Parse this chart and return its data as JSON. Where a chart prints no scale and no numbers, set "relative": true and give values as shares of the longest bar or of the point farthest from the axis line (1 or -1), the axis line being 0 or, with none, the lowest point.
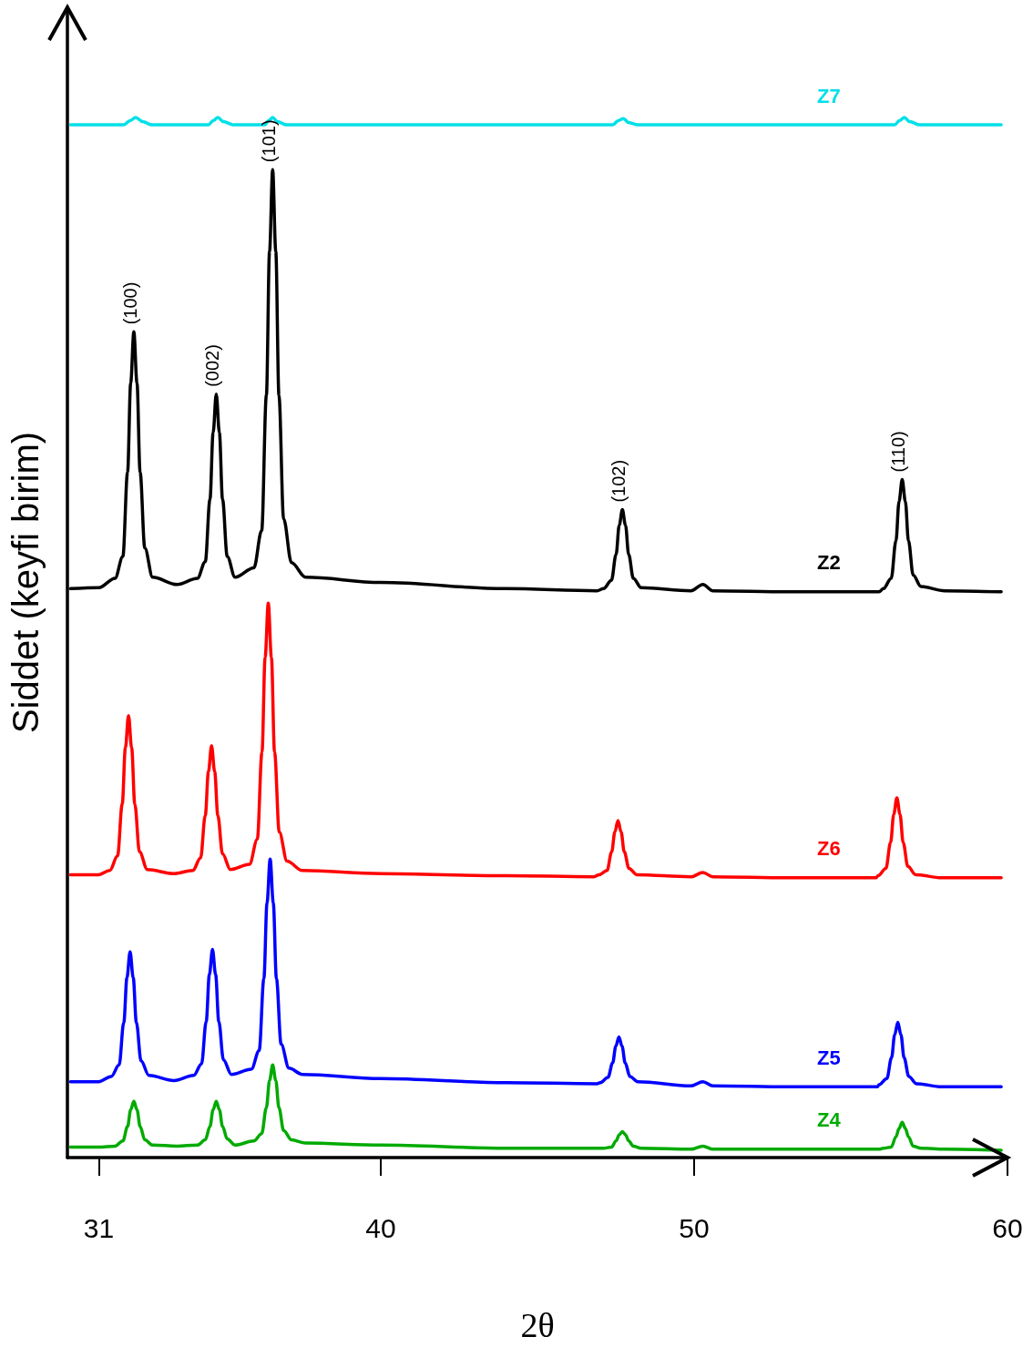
{
  "chart_data": {
    "type": "line",
    "relative": true,
    "xlabel": "2θ",
    "ylabel": "Siddet (keyfi birim)",
    "xlim": [
      30,
      60
    ],
    "xticks": [
      31,
      40,
      50,
      60
    ],
    "annotations": [
      {
        "text": "(100)",
        "x": 32.12,
        "y": 0.794
      },
      {
        "text": "(002)",
        "x": 34.75,
        "y": 0.734
      },
      {
        "text": "(101)",
        "x": 36.55,
        "y": 0.95
      },
      {
        "text": "(102)",
        "x": 47.71,
        "y": 0.623
      },
      {
        "text": "(110)",
        "x": 56.64,
        "y": 0.652
      }
    ],
    "series": [
      {
        "name": "Z7",
        "color": "#00e0e8",
        "x": [
          30.1,
          31.8,
          32.0,
          32.18,
          32.4,
          32.7,
          34.5,
          34.65,
          34.8,
          34.98,
          35.3,
          36.3,
          36.42,
          36.55,
          36.7,
          37.0,
          47.4,
          47.58,
          47.74,
          47.92,
          48.2,
          56.4,
          56.55,
          56.71,
          56.88,
          57.2,
          59.8
        ],
        "values": [
          0.993,
          0.993,
          0.997,
          1.0,
          0.996,
          0.993,
          0.993,
          0.997,
          1.0,
          0.996,
          0.993,
          0.993,
          0.997,
          1.0,
          0.996,
          0.993,
          0.993,
          0.997,
          0.999,
          0.995,
          0.993,
          0.993,
          0.997,
          1.0,
          0.996,
          0.993,
          0.993
        ]
      },
      {
        "name": "Z2",
        "color": "#000000",
        "x": [
          30.1,
          31.0,
          31.52,
          31.77,
          31.92,
          32.02,
          32.12,
          32.22,
          32.32,
          32.47,
          32.72,
          33.5,
          34.15,
          34.4,
          34.55,
          34.65,
          34.75,
          34.85,
          34.95,
          35.1,
          35.35,
          35.95,
          36.2,
          36.35,
          36.45,
          36.55,
          36.65,
          36.75,
          36.9,
          37.15,
          37.6,
          40,
          44,
          46.9,
          47.11,
          47.36,
          47.51,
          47.61,
          47.71,
          47.81,
          47.91,
          48.06,
          48.31,
          49.9,
          50.28,
          50.6,
          53,
          55.9,
          56.04,
          56.29,
          56.44,
          56.54,
          56.64,
          56.74,
          56.84,
          56.99,
          57.24,
          58,
          59.8
        ],
        "values": [
          0.547,
          0.548,
          0.557,
          0.578,
          0.659,
          0.745,
          0.794,
          0.745,
          0.659,
          0.586,
          0.558,
          0.551,
          0.557,
          0.573,
          0.633,
          0.697,
          0.734,
          0.697,
          0.633,
          0.578,
          0.558,
          0.567,
          0.603,
          0.733,
          0.871,
          0.95,
          0.871,
          0.733,
          0.614,
          0.572,
          0.558,
          0.553,
          0.547,
          0.545,
          0.547,
          0.555,
          0.58,
          0.608,
          0.623,
          0.608,
          0.58,
          0.557,
          0.548,
          0.545,
          0.551,
          0.545,
          0.544,
          0.544,
          0.547,
          0.557,
          0.593,
          0.631,
          0.652,
          0.631,
          0.593,
          0.56,
          0.549,
          0.545,
          0.544
        ]
      },
      {
        "name": "Z6",
        "color": "#ff0000",
        "x": [
          30.1,
          31.0,
          31.35,
          31.6,
          31.75,
          31.85,
          31.95,
          32.05,
          32.15,
          32.3,
          32.55,
          33.4,
          34.0,
          34.25,
          34.4,
          34.5,
          34.6,
          34.7,
          34.8,
          34.95,
          35.2,
          35.81,
          36.06,
          36.21,
          36.31,
          36.41,
          36.51,
          36.61,
          36.76,
          37.01,
          37.5,
          40,
          44,
          46.8,
          46.97,
          47.22,
          47.37,
          47.47,
          47.57,
          47.67,
          47.77,
          47.92,
          48.17,
          49.9,
          50.28,
          50.6,
          53,
          55.8,
          55.87,
          56.12,
          56.27,
          56.37,
          56.47,
          56.57,
          56.67,
          56.82,
          57.07,
          57.9,
          59.8
        ],
        "values": [
          0.272,
          0.272,
          0.276,
          0.29,
          0.34,
          0.394,
          0.425,
          0.394,
          0.34,
          0.294,
          0.277,
          0.273,
          0.276,
          0.288,
          0.329,
          0.371,
          0.396,
          0.371,
          0.329,
          0.292,
          0.277,
          0.282,
          0.306,
          0.39,
          0.481,
          0.533,
          0.481,
          0.39,
          0.313,
          0.285,
          0.276,
          0.273,
          0.271,
          0.27,
          0.272,
          0.276,
          0.294,
          0.313,
          0.324,
          0.313,
          0.294,
          0.278,
          0.272,
          0.27,
          0.274,
          0.27,
          0.269,
          0.269,
          0.271,
          0.278,
          0.303,
          0.33,
          0.346,
          0.33,
          0.303,
          0.28,
          0.272,
          0.269,
          0.269
        ]
      },
      {
        "name": "Z5",
        "color": "#0000ff",
        "x": [
          30.1,
          31.0,
          31.4,
          31.65,
          31.8,
          31.9,
          32.0,
          32.1,
          32.2,
          32.35,
          32.6,
          33.4,
          34.03,
          34.28,
          34.43,
          34.53,
          34.63,
          34.73,
          34.83,
          34.98,
          35.23,
          35.87,
          36.12,
          36.27,
          36.37,
          36.47,
          36.57,
          36.67,
          36.82,
          37.07,
          37.5,
          40,
          44,
          46.9,
          47.0,
          47.25,
          47.4,
          47.5,
          47.6,
          47.7,
          47.8,
          47.95,
          48.2,
          49.9,
          50.28,
          50.6,
          53,
          55.85,
          55.9,
          56.15,
          56.3,
          56.4,
          56.5,
          56.6,
          56.7,
          56.85,
          57.1,
          57.9,
          59.8
        ],
        "values": [
          0.073,
          0.073,
          0.078,
          0.089,
          0.13,
          0.173,
          0.198,
          0.173,
          0.13,
          0.093,
          0.079,
          0.074,
          0.079,
          0.09,
          0.131,
          0.176,
          0.2,
          0.176,
          0.131,
          0.094,
          0.08,
          0.085,
          0.103,
          0.172,
          0.245,
          0.287,
          0.245,
          0.172,
          0.109,
          0.086,
          0.08,
          0.076,
          0.072,
          0.071,
          0.072,
          0.077,
          0.091,
          0.107,
          0.116,
          0.107,
          0.091,
          0.078,
          0.073,
          0.069,
          0.073,
          0.069,
          0.068,
          0.068,
          0.07,
          0.076,
          0.096,
          0.118,
          0.13,
          0.118,
          0.096,
          0.078,
          0.071,
          0.068,
          0.068
        ]
      },
      {
        "name": "Z4",
        "color": "#00aa00",
        "x": [
          30.1,
          31.0,
          31.52,
          31.77,
          31.92,
          32.02,
          32.12,
          32.22,
          32.32,
          32.47,
          32.72,
          33.5,
          34.15,
          34.4,
          34.55,
          34.65,
          34.75,
          34.85,
          34.95,
          35.1,
          35.35,
          35.95,
          36.2,
          36.35,
          36.45,
          36.55,
          36.65,
          36.75,
          36.9,
          37.15,
          37.6,
          40,
          44,
          46.9,
          47.11,
          47.36,
          47.51,
          47.61,
          47.71,
          47.81,
          47.91,
          48.06,
          48.31,
          49.9,
          50.28,
          50.6,
          53,
          55.9,
          56.04,
          56.29,
          56.44,
          56.54,
          56.64,
          56.74,
          56.84,
          56.99,
          57.24,
          58,
          59.8
        ],
        "values": [
          0.01,
          0.01,
          0.011,
          0.016,
          0.03,
          0.046,
          0.054,
          0.046,
          0.03,
          0.017,
          0.012,
          0.011,
          0.012,
          0.017,
          0.03,
          0.046,
          0.054,
          0.046,
          0.03,
          0.018,
          0.012,
          0.016,
          0.023,
          0.048,
          0.074,
          0.089,
          0.074,
          0.048,
          0.026,
          0.017,
          0.014,
          0.012,
          0.009,
          0.009,
          0.009,
          0.01,
          0.016,
          0.022,
          0.025,
          0.022,
          0.016,
          0.011,
          0.009,
          0.008,
          0.011,
          0.008,
          0.008,
          0.008,
          0.009,
          0.01,
          0.02,
          0.028,
          0.034,
          0.028,
          0.02,
          0.011,
          0.009,
          0.008,
          0.007
        ]
      }
    ]
  }
}
